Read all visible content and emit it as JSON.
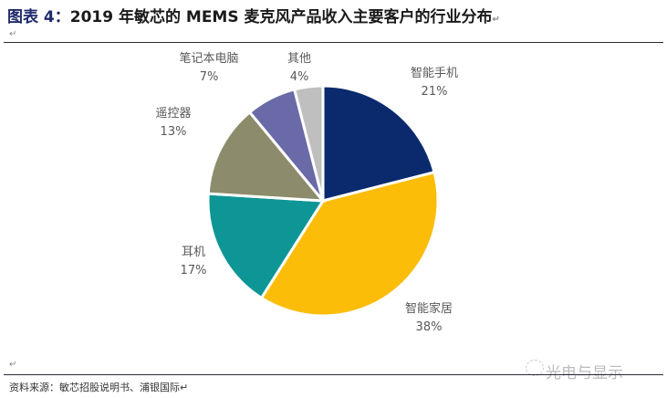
{
  "header": {
    "prefix": "图表 4：",
    "title": "2019 年敏芯的 MEMS 麦克风产品收入主要客户的行业分布",
    "pilcrow": "↵"
  },
  "footer": {
    "source": "资料来源：敏芯招股说明书、浦银国际↵",
    "watermark": "光电与显示",
    "pilcrow": "↵"
  },
  "chart_data": {
    "type": "pie",
    "title": "2019 年敏芯的 MEMS 麦克风产品收入主要客户的行业分布",
    "categories": [
      "智能手机",
      "智能家居",
      "耳机",
      "遥控器",
      "笔记本电脑",
      "其他"
    ],
    "values": [
      21,
      38,
      17,
      13,
      7,
      4
    ],
    "unit": "%",
    "colors": [
      "#0b2a6e",
      "#fbbd08",
      "#0e9596",
      "#8c8c6c",
      "#6a6aa8",
      "#bfbfbf"
    ],
    "start_angle": "12 o'clock, clockwise",
    "labels": [
      {
        "name": "智能手机",
        "pct": "21%"
      },
      {
        "name": "智能家居",
        "pct": "38%"
      },
      {
        "name": "耳机",
        "pct": "17%"
      },
      {
        "name": "遥控器",
        "pct": "13%"
      },
      {
        "name": "笔记本电脑",
        "pct": "7%"
      },
      {
        "name": "其他",
        "pct": "4%"
      }
    ]
  }
}
